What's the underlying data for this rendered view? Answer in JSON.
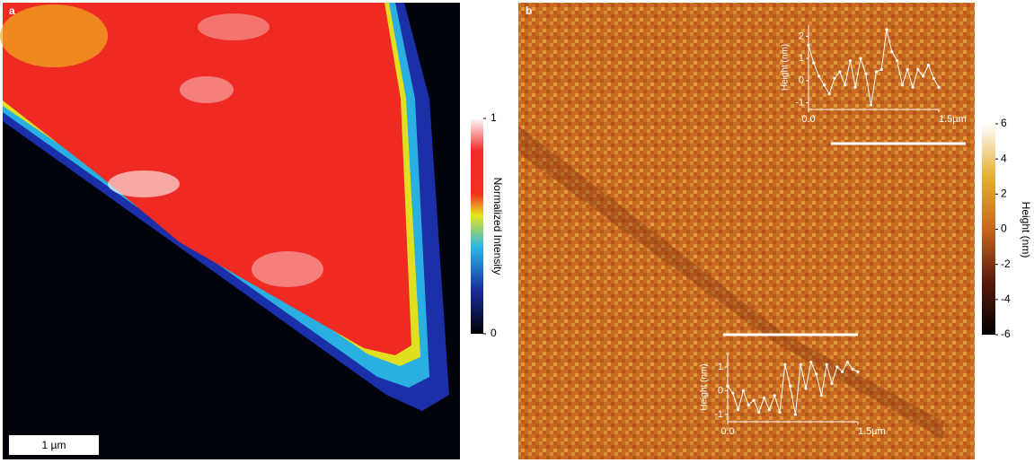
{
  "panel_a": {
    "label": "a",
    "scale_bar": "1 µm",
    "colorbar": {
      "title": "Normalized Intensity",
      "lim": [
        0,
        1
      ],
      "ticks": [
        0,
        1
      ]
    }
  },
  "panel_b": {
    "label": "b",
    "colorbar": {
      "title": "Height (nm)",
      "lim": [
        -6,
        6
      ],
      "ticks": [
        -6,
        -4,
        -2,
        0,
        2,
        4,
        6
      ]
    },
    "insets": [
      {
        "ylabel": "Height (nm)",
        "xlim": [
          0,
          1.5
        ],
        "xticks": [
          {
            "value": 0,
            "label": "0.0"
          },
          {
            "value": 1.5,
            "label": "1.5µm"
          }
        ],
        "ylim": [
          -1.3,
          2.5
        ],
        "yticks": [
          -1,
          0,
          1,
          2
        ],
        "x": [
          0,
          0.06,
          0.12,
          0.18,
          0.24,
          0.3,
          0.36,
          0.42,
          0.48,
          0.54,
          0.6,
          0.66,
          0.72,
          0.78,
          0.84,
          0.9,
          0.96,
          1.02,
          1.08,
          1.14,
          1.2,
          1.26,
          1.32,
          1.38,
          1.44,
          1.5
        ],
        "values": [
          1.6,
          0.8,
          0.2,
          -0.2,
          -0.6,
          0.1,
          0.4,
          -0.2,
          0.9,
          -0.3,
          1.0,
          0.3,
          -1.1,
          0.4,
          0.5,
          2.3,
          1.3,
          0.9,
          -0.2,
          0.5,
          -0.3,
          0.5,
          0.2,
          0.7,
          0.1,
          -0.3
        ]
      },
      {
        "ylabel": "Height (nm)",
        "xlim": [
          0,
          1.5
        ],
        "xticks": [
          {
            "value": 0,
            "label": "0.0"
          },
          {
            "value": 1.5,
            "label": "1.5µm"
          }
        ],
        "ylim": [
          -1.3,
          1.6
        ],
        "yticks": [
          -1,
          0,
          1
        ],
        "x": [
          0,
          0.06,
          0.12,
          0.18,
          0.24,
          0.3,
          0.36,
          0.42,
          0.48,
          0.54,
          0.6,
          0.66,
          0.72,
          0.78,
          0.84,
          0.9,
          0.96,
          1.02,
          1.08,
          1.14,
          1.2,
          1.26,
          1.32,
          1.38,
          1.44,
          1.5
        ],
        "values": [
          0.2,
          -0.1,
          -0.8,
          0.0,
          -0.6,
          -0.4,
          -0.9,
          -0.3,
          -0.8,
          -0.2,
          -0.9,
          1.1,
          0.2,
          -1.0,
          1.1,
          0.1,
          1.2,
          0.7,
          -0.2,
          1.1,
          0.3,
          1.0,
          0.8,
          1.2,
          0.9,
          0.8
        ]
      }
    ]
  }
}
